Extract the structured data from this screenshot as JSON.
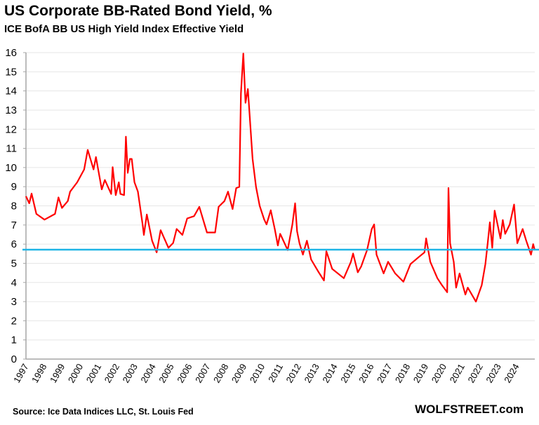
{
  "chart_data": {
    "type": "line",
    "title": "US Corporate BB-Rated Bond Yield, %",
    "subtitle": "ICE BofA BB US High Yield Index Effective Yield",
    "xlabel": "",
    "ylabel": "",
    "xlim": [
      1997,
      2025
    ],
    "ylim": [
      0,
      16
    ],
    "y_ticks": [
      "0",
      "1",
      "2",
      "3",
      "4",
      "5",
      "6",
      "7",
      "8",
      "9",
      "10",
      "11",
      "12",
      "13",
      "14",
      "15",
      "16"
    ],
    "x_ticks": [
      "1997",
      "1998",
      "1999",
      "2000",
      "2001",
      "2002",
      "2003",
      "2004",
      "2005",
      "2006",
      "2007",
      "2008",
      "2009",
      "2010",
      "2011",
      "2012",
      "2013",
      "2014",
      "2015",
      "2016",
      "2017",
      "2018",
      "2019",
      "2020",
      "2021",
      "2022",
      "2023",
      "2024"
    ],
    "grid": true,
    "legend": "none",
    "colors": {
      "series": "#ff0000",
      "reference_line": "#1eb4e6",
      "grid": "#e6e6e6",
      "axis": "#a6a6a6"
    },
    "reference_line": {
      "value": 5.71
    },
    "series": [
      {
        "points": [
          [
            1997.0,
            8.5
          ],
          [
            1997.18,
            8.13
          ],
          [
            1997.31,
            8.64
          ],
          [
            1997.57,
            7.58
          ],
          [
            1998.02,
            7.28
          ],
          [
            1998.6,
            7.58
          ],
          [
            1998.79,
            8.44
          ],
          [
            1998.98,
            7.89
          ],
          [
            1999.3,
            8.25
          ],
          [
            1999.43,
            8.74
          ],
          [
            1999.82,
            9.23
          ],
          [
            2000.2,
            9.9
          ],
          [
            2000.4,
            10.92
          ],
          [
            2000.72,
            9.9
          ],
          [
            2000.85,
            10.55
          ],
          [
            2001.17,
            8.86
          ],
          [
            2001.34,
            9.35
          ],
          [
            2001.69,
            8.62
          ],
          [
            2001.77,
            10.02
          ],
          [
            2001.94,
            8.56
          ],
          [
            2002.11,
            9.23
          ],
          [
            2002.2,
            8.62
          ],
          [
            2002.4,
            8.56
          ],
          [
            2002.5,
            11.61
          ],
          [
            2002.6,
            9.72
          ],
          [
            2002.72,
            10.45
          ],
          [
            2002.82,
            10.45
          ],
          [
            2002.97,
            9.23
          ],
          [
            2003.16,
            8.74
          ],
          [
            2003.42,
            7.03
          ],
          [
            2003.49,
            6.48
          ],
          [
            2003.65,
            7.55
          ],
          [
            2003.94,
            6.18
          ],
          [
            2004.19,
            5.57
          ],
          [
            2004.41,
            6.73
          ],
          [
            2004.84,
            5.81
          ],
          [
            2005.1,
            6.06
          ],
          [
            2005.29,
            6.79
          ],
          [
            2005.61,
            6.48
          ],
          [
            2005.87,
            7.34
          ],
          [
            2006.25,
            7.46
          ],
          [
            2006.54,
            7.95
          ],
          [
            2006.96,
            6.61
          ],
          [
            2007.41,
            6.61
          ],
          [
            2007.6,
            7.95
          ],
          [
            2007.92,
            8.25
          ],
          [
            2008.12,
            8.74
          ],
          [
            2008.37,
            7.83
          ],
          [
            2008.57,
            8.93
          ],
          [
            2008.74,
            8.99
          ],
          [
            2008.83,
            13.87
          ],
          [
            2008.96,
            15.95
          ],
          [
            2009.08,
            13.38
          ],
          [
            2009.21,
            14.1
          ],
          [
            2009.47,
            10.45
          ],
          [
            2009.66,
            8.99
          ],
          [
            2009.86,
            8.0
          ],
          [
            2010.11,
            7.28
          ],
          [
            2010.24,
            7.03
          ],
          [
            2010.47,
            7.77
          ],
          [
            2010.69,
            6.79
          ],
          [
            2010.86,
            5.93
          ],
          [
            2010.99,
            6.54
          ],
          [
            2011.02,
            6.48
          ],
          [
            2011.4,
            5.69
          ],
          [
            2011.66,
            7.03
          ],
          [
            2011.81,
            8.13
          ],
          [
            2011.92,
            6.67
          ],
          [
            2012.05,
            6.05
          ],
          [
            2012.24,
            5.45
          ],
          [
            2012.46,
            6.18
          ],
          [
            2012.69,
            5.2
          ],
          [
            2013.07,
            4.59
          ],
          [
            2013.4,
            4.1
          ],
          [
            2013.53,
            5.63
          ],
          [
            2013.85,
            4.71
          ],
          [
            2014.49,
            4.22
          ],
          [
            2014.88,
            5.08
          ],
          [
            2015.0,
            5.51
          ],
          [
            2015.26,
            4.53
          ],
          [
            2015.45,
            4.84
          ],
          [
            2015.77,
            5.69
          ],
          [
            2016.03,
            6.79
          ],
          [
            2016.16,
            7.03
          ],
          [
            2016.29,
            5.45
          ],
          [
            2016.68,
            4.47
          ],
          [
            2016.93,
            5.08
          ],
          [
            2017.32,
            4.47
          ],
          [
            2017.77,
            4.04
          ],
          [
            2018.16,
            4.96
          ],
          [
            2018.61,
            5.32
          ],
          [
            2018.93,
            5.57
          ],
          [
            2019.02,
            6.3
          ],
          [
            2019.25,
            5.08
          ],
          [
            2019.64,
            4.22
          ],
          [
            2019.89,
            3.86
          ],
          [
            2020.18,
            3.49
          ],
          [
            2020.25,
            8.93
          ],
          [
            2020.34,
            6.05
          ],
          [
            2020.54,
            5.08
          ],
          [
            2020.67,
            3.73
          ],
          [
            2020.86,
            4.47
          ],
          [
            2021.18,
            3.37
          ],
          [
            2021.31,
            3.73
          ],
          [
            2021.76,
            3.0
          ],
          [
            2022.08,
            3.86
          ],
          [
            2022.28,
            4.96
          ],
          [
            2022.41,
            6.05
          ],
          [
            2022.53,
            7.14
          ],
          [
            2022.66,
            5.81
          ],
          [
            2022.79,
            7.75
          ],
          [
            2023.11,
            6.3
          ],
          [
            2023.24,
            7.26
          ],
          [
            2023.37,
            6.54
          ],
          [
            2023.62,
            7.03
          ],
          [
            2023.86,
            8.07
          ],
          [
            2024.04,
            6.05
          ],
          [
            2024.33,
            6.79
          ],
          [
            2024.53,
            6.18
          ],
          [
            2024.79,
            5.45
          ],
          [
            2024.91,
            6.0
          ],
          [
            2025.0,
            5.69
          ]
        ]
      }
    ]
  },
  "footer": {
    "source": "Source: Ice Data Indices LLC, St. Louis Fed",
    "brand": "WOLFSTREET.com"
  }
}
